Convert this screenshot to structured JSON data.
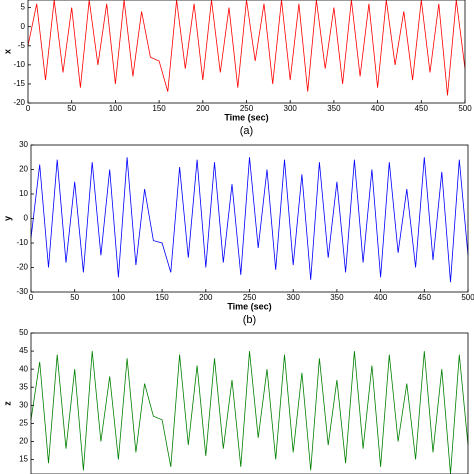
{
  "chart_data": [
    {
      "type": "line",
      "y_label": "x",
      "x_label": "Time (sec)",
      "caption": "(a)",
      "color": "#ff0000",
      "x": [
        0,
        10,
        20,
        30,
        40,
        50,
        60,
        70,
        80,
        90,
        100,
        110,
        120,
        130,
        140,
        150,
        160,
        170,
        180,
        190,
        200,
        210,
        220,
        230,
        240,
        250,
        260,
        270,
        280,
        290,
        300,
        310,
        320,
        330,
        340,
        350,
        360,
        370,
        380,
        390,
        400,
        410,
        420,
        430,
        440,
        450,
        460,
        470,
        480,
        490,
        500
      ],
      "values": [
        -5,
        6,
        -14,
        7,
        -12,
        5,
        -16,
        7,
        -10,
        6,
        -15,
        7,
        -13,
        4,
        -8,
        -9,
        -17,
        7,
        -11,
        6,
        -14,
        7,
        -12,
        5,
        -16,
        7,
        -9,
        6,
        -15,
        7,
        -14,
        6,
        -17,
        7,
        -11,
        5,
        -15,
        7,
        -13,
        6,
        -16,
        7,
        -10,
        4,
        -14,
        7,
        -12,
        6,
        -18,
        7,
        -11
      ],
      "xlim": [
        0,
        500
      ],
      "xticks": [
        0,
        50,
        100,
        150,
        200,
        250,
        300,
        350,
        400,
        450,
        500
      ],
      "ylim": [
        -20,
        7
      ],
      "yticks": [
        5,
        0,
        -5,
        -10,
        -15,
        -20
      ]
    },
    {
      "type": "line",
      "y_label": "y",
      "x_label": "Time (sec)",
      "caption": "(b)",
      "color": "#0000ff",
      "x": [
        0,
        10,
        20,
        30,
        40,
        50,
        60,
        70,
        80,
        90,
        100,
        110,
        120,
        130,
        140,
        150,
        160,
        170,
        180,
        190,
        200,
        210,
        220,
        230,
        240,
        250,
        260,
        270,
        280,
        290,
        300,
        310,
        320,
        330,
        340,
        350,
        360,
        370,
        380,
        390,
        400,
        410,
        420,
        430,
        440,
        450,
        460,
        470,
        480,
        490,
        500
      ],
      "values": [
        -8,
        22,
        -20,
        24,
        -18,
        15,
        -22,
        23,
        -15,
        20,
        -24,
        25,
        -19,
        12,
        -9,
        -10,
        -22,
        21,
        -16,
        24,
        -20,
        23,
        -18,
        14,
        -23,
        25,
        -12,
        20,
        -21,
        24,
        -19,
        18,
        -25,
        23,
        -16,
        15,
        -22,
        24,
        -18,
        20,
        -24,
        23,
        -14,
        12,
        -20,
        25,
        -17,
        19,
        -26,
        24,
        -15
      ],
      "xlim": [
        0,
        500
      ],
      "xticks": [
        0,
        50,
        100,
        150,
        200,
        250,
        300,
        350,
        400,
        450,
        500
      ],
      "ylim": [
        -30,
        30
      ],
      "yticks": [
        30,
        20,
        10,
        0,
        -10,
        -20,
        -30
      ]
    },
    {
      "type": "line",
      "y_label": "z",
      "color": "#008000",
      "x": [
        0,
        10,
        20,
        30,
        40,
        50,
        60,
        70,
        80,
        90,
        100,
        110,
        120,
        130,
        140,
        150,
        160,
        170,
        180,
        190,
        200,
        210,
        220,
        230,
        240,
        250,
        260,
        270,
        280,
        290,
        300,
        310,
        320,
        330,
        340,
        350,
        360,
        370,
        380,
        390,
        400,
        410,
        420,
        430,
        440,
        450,
        460,
        470,
        480,
        490,
        500
      ],
      "values": [
        26,
        42,
        14,
        44,
        18,
        40,
        12,
        45,
        20,
        38,
        15,
        43,
        17,
        36,
        27,
        26,
        13,
        44,
        19,
        41,
        16,
        43,
        18,
        37,
        13,
        45,
        21,
        40,
        15,
        44,
        17,
        39,
        12,
        43,
        19,
        37,
        14,
        45,
        18,
        41,
        13,
        44,
        20,
        36,
        15,
        45,
        17,
        40,
        11,
        44,
        19
      ],
      "xlim": [
        0,
        500
      ],
      "ylim": [
        11,
        50
      ],
      "yticks": [
        50,
        45,
        40,
        35,
        30,
        25,
        20,
        15
      ]
    }
  ]
}
